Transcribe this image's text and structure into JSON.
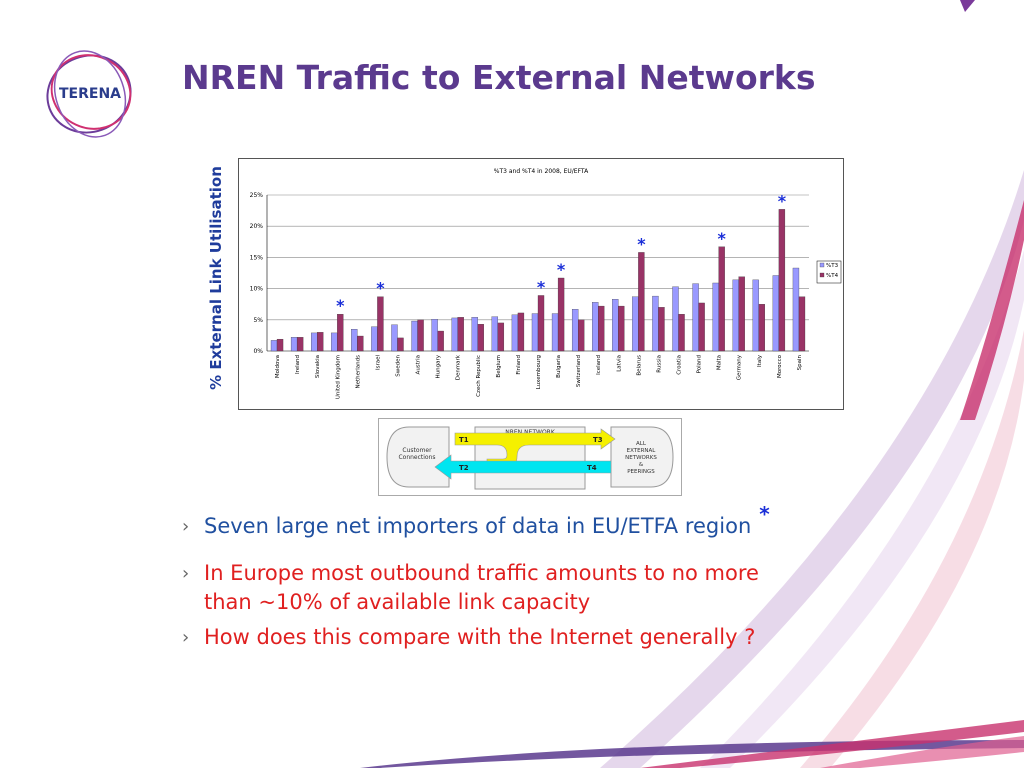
{
  "slide": {
    "title": "NREN Traffic to External Networks",
    "logo_text": "TERENA",
    "side_label": "% External Link Utilisation"
  },
  "colors": {
    "title": "#5b3a8e",
    "t3": "#9999ff",
    "t4": "#993366",
    "star": "#1a2ed8",
    "bullet_blue": "#2050a0",
    "bullet_red": "#e02020"
  },
  "chart_data": {
    "type": "bar",
    "title": "%T3 and %T4 in 2008, EU/EFTA",
    "ylabel": "",
    "xlabel": "",
    "ylim": [
      0,
      25
    ],
    "yticks": [
      "0%",
      "5%",
      "10%",
      "15%",
      "20%",
      "25%"
    ],
    "grid": true,
    "legend": "right",
    "categories": [
      "Moldova",
      "Ireland",
      "Slovakia",
      "United Kingdom",
      "Netherlands",
      "Israel",
      "Sweden",
      "Austria",
      "Hungary",
      "Denmark",
      "Czech Republic",
      "Belgium",
      "Finland",
      "Luxembourg",
      "Bulgaria",
      "Switzerland",
      "Iceland",
      "Latvia",
      "Belarus",
      "Russia",
      "Croatia",
      "Poland",
      "Malta",
      "Germany",
      "Italy",
      "Morocco",
      "Spain"
    ],
    "series": [
      {
        "name": "%T3",
        "values": [
          1.7,
          2.2,
          2.9,
          2.9,
          3.5,
          3.9,
          4.2,
          4.8,
          5.1,
          5.3,
          5.4,
          5.5,
          5.8,
          6.0,
          6.0,
          6.7,
          7.8,
          8.3,
          8.7,
          8.8,
          10.3,
          10.8,
          10.9,
          11.4,
          11.4,
          12.1,
          13.3
        ]
      },
      {
        "name": "%T4",
        "values": [
          1.9,
          2.2,
          3.0,
          5.9,
          2.4,
          8.7,
          2.1,
          5.0,
          3.2,
          5.4,
          4.3,
          4.5,
          6.1,
          8.9,
          11.7,
          5.0,
          7.2,
          7.2,
          15.8,
          7.0,
          5.9,
          7.7,
          16.7,
          11.9,
          7.5,
          22.7,
          8.7
        ]
      }
    ],
    "starred_categories": [
      "United Kingdom",
      "Israel",
      "Luxembourg",
      "Bulgaria",
      "Belarus",
      "Malta",
      "Morocco"
    ]
  },
  "diagram": {
    "network_label": "NREN NETWORK",
    "left_label_1": "Customer",
    "left_label_2": "Connections",
    "right_label_1": "ALL",
    "right_label_2": "EXTERNAL",
    "right_label_3": "NETWORKS",
    "right_label_4": "&",
    "right_label_5": "PEERINGS",
    "t1": "T1",
    "t2": "T2",
    "t3": "T3",
    "t4": "T4"
  },
  "bullets": {
    "b1": "Seven large net importers of data in EU/ETFA region",
    "b2_line1": "In Europe most outbound traffic amounts to no more",
    "b2_line2": "than ~10% of available link capacity",
    "b3": "How does this compare with the Internet generally ?",
    "chevron": "›",
    "star": "*"
  }
}
